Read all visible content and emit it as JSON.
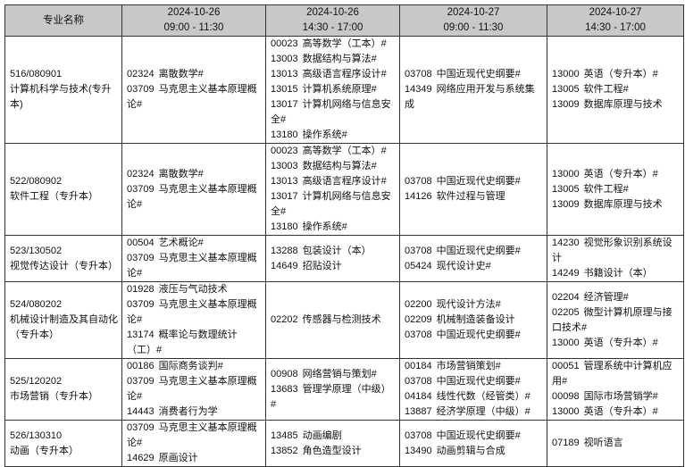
{
  "header": {
    "major_label": "专业名称",
    "sessions": [
      {
        "date": "2024-10-26",
        "time": "09:00 - 11:30"
      },
      {
        "date": "2024-10-26",
        "time": "14:30 - 17:00"
      },
      {
        "date": "2024-10-27",
        "time": "09:00 - 11:30"
      },
      {
        "date": "2024-10-27",
        "time": "14:30 - 17:00"
      }
    ]
  },
  "rows": [
    {
      "major_code": "516/080901",
      "major_name": "计算机科学与技术(专升本)",
      "sessions": [
        [
          {
            "code": "02324",
            "name": "离散数学#"
          },
          {
            "code": "03709",
            "name": "马克思主义基本原理概论#"
          }
        ],
        [
          {
            "code": "00023",
            "name": "高等数学（工本）#"
          },
          {
            "code": "13003",
            "name": "数据结构与算法#"
          },
          {
            "code": "13013",
            "name": "高级语言程序设计#"
          },
          {
            "code": "13015",
            "name": "计算机系统原理#"
          },
          {
            "code": "13017",
            "name": "计算机网络与信息安全#"
          },
          {
            "code": "13180",
            "name": "操作系统#"
          }
        ],
        [
          {
            "code": "03708",
            "name": "中国近现代史纲要#"
          },
          {
            "code": "14349",
            "name": "网络应用开发与系统集成"
          }
        ],
        [
          {
            "code": "13000",
            "name": "英语（专升本）#"
          },
          {
            "code": "13005",
            "name": "软件工程#"
          },
          {
            "code": "13009",
            "name": "数据库原理与技术"
          }
        ]
      ]
    },
    {
      "major_code": "522/080902",
      "major_name": "软件工程（专升本）",
      "sessions": [
        [
          {
            "code": "02324",
            "name": "离散数学#"
          },
          {
            "code": "03709",
            "name": "马克思主义基本原理概论#"
          }
        ],
        [
          {
            "code": "00023",
            "name": "高等数学（工本）#"
          },
          {
            "code": "13003",
            "name": "数据结构与算法#"
          },
          {
            "code": "13013",
            "name": "高级语言程序设计#"
          },
          {
            "code": "13017",
            "name": "计算机网络与信息安全#"
          },
          {
            "code": "13180",
            "name": "操作系统#"
          }
        ],
        [
          {
            "code": "03708",
            "name": "中国近现代史纲要#"
          },
          {
            "code": "14126",
            "name": "软件过程与管理"
          }
        ],
        [
          {
            "code": "13000",
            "name": "英语（专升本）#"
          },
          {
            "code": "13005",
            "name": "软件工程#"
          },
          {
            "code": "13009",
            "name": "数据库原理与技术"
          }
        ]
      ]
    },
    {
      "major_code": "523/130502",
      "major_name": "视觉传达设计（专升本）",
      "sessions": [
        [
          {
            "code": "00504",
            "name": "艺术概论#"
          },
          {
            "code": "03709",
            "name": "马克思主义基本原理概论#"
          }
        ],
        [
          {
            "code": "13288",
            "name": "包装设计（本）"
          },
          {
            "code": "14649",
            "name": "招贴设计"
          }
        ],
        [
          {
            "code": "03708",
            "name": "中国近现代史纲要#"
          },
          {
            "code": "05424",
            "name": "现代设计史#"
          }
        ],
        [
          {
            "code": "14230",
            "name": "视觉形象识别系统设计"
          },
          {
            "code": "14249",
            "name": "书籍设计（本）"
          }
        ]
      ]
    },
    {
      "major_code": "524/080202",
      "major_name": "机械设计制造及其自动化（专升本）",
      "sessions": [
        [
          {
            "code": "01928",
            "name": "液压与气动技术"
          },
          {
            "code": "03709",
            "name": "马克思主义基本原理概论#"
          },
          {
            "code": "13174",
            "name": "概率论与数理统计（工）#"
          }
        ],
        [
          {
            "code": "02202",
            "name": "传感器与检测技术"
          }
        ],
        [
          {
            "code": "02200",
            "name": "现代设计方法#"
          },
          {
            "code": "02209",
            "name": "机械制造装备设计"
          },
          {
            "code": "03708",
            "name": "中国近现代史纲要#"
          }
        ],
        [
          {
            "code": "02204",
            "name": "经济管理#"
          },
          {
            "code": "02205",
            "name": "微型计算机原理与接口技术#"
          },
          {
            "code": "13000",
            "name": "英语（专升本）#"
          }
        ]
      ]
    },
    {
      "major_code": "525/120202",
      "major_name": "市场营销（专升本）",
      "sessions": [
        [
          {
            "code": "00186",
            "name": "国际商务谈判#"
          },
          {
            "code": "03709",
            "name": "马克思主义基本原理概论#"
          },
          {
            "code": "14443",
            "name": "消费者行为学"
          }
        ],
        [
          {
            "code": "00908",
            "name": "网络营销与策划#"
          },
          {
            "code": "13683",
            "name": "管理学原理（中级）#"
          }
        ],
        [
          {
            "code": "00184",
            "name": "市场营销策划#"
          },
          {
            "code": "03708",
            "name": "中国近现代史纲要#"
          },
          {
            "code": "04184",
            "name": "线性代数（经管类）#"
          },
          {
            "code": "13887",
            "name": "经济学原理（中级）#"
          }
        ],
        [
          {
            "code": "00051",
            "name": "管理系统中计算机应用#"
          },
          {
            "code": "00098",
            "name": "国际市场营销学#"
          },
          {
            "code": "13000",
            "name": "英语（专升本）#"
          }
        ]
      ]
    },
    {
      "major_code": "526/130310",
      "major_name": "动画（专升本）",
      "sessions": [
        [
          {
            "code": "03709",
            "name": "马克思主义基本原理概论#"
          },
          {
            "code": "14629",
            "name": "原画设计"
          }
        ],
        [
          {
            "code": "13485",
            "name": "动画编剧"
          },
          {
            "code": "13852",
            "name": "角色造型设计"
          }
        ],
        [
          {
            "code": "03708",
            "name": "中国近现代史纲要#"
          },
          {
            "code": "13490",
            "name": "动画剪辑与合成"
          }
        ],
        [
          {
            "code": "07189",
            "name": "视听语言"
          }
        ]
      ]
    }
  ]
}
